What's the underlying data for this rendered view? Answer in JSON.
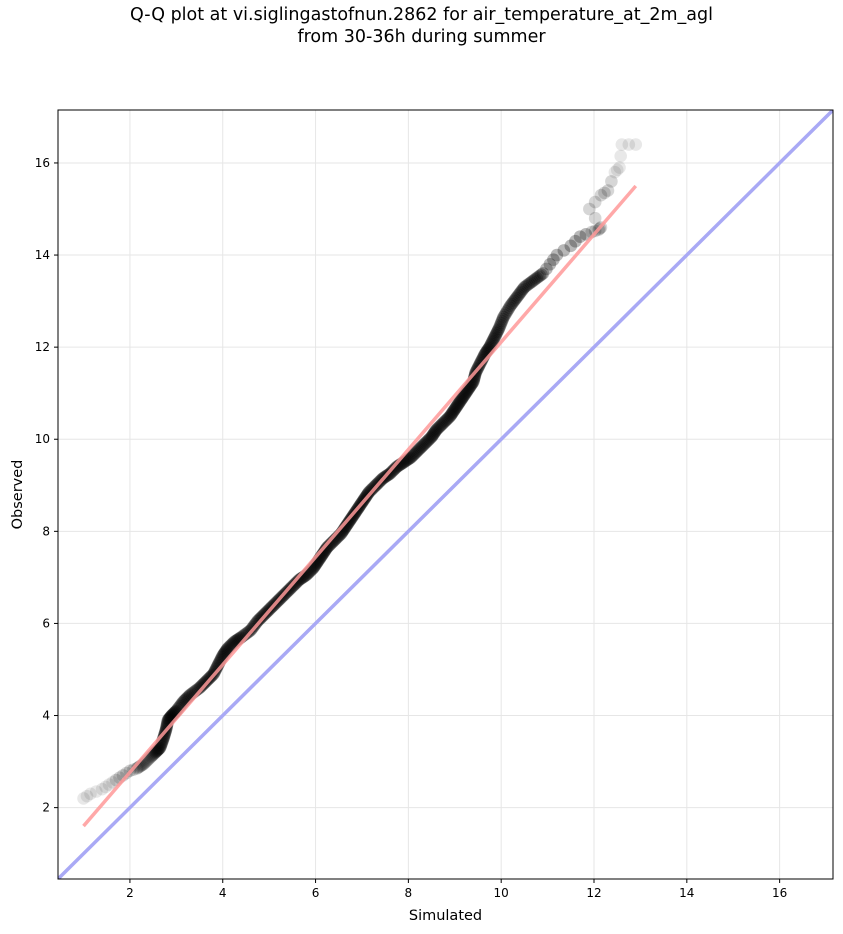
{
  "chart_data": {
    "type": "scatter",
    "title_line1": "Q-Q plot at vi.siglingastofnun.2862 for air_temperature_at_2m_agl",
    "title_line2": "from 30-36h during summer",
    "xlabel": "Simulated",
    "ylabel": "Observed",
    "xlim": [
      0.45,
      17.15
    ],
    "ylim": [
      0.45,
      17.15
    ],
    "xticks": [
      2,
      4,
      6,
      8,
      10,
      12,
      14,
      16
    ],
    "yticks": [
      2,
      4,
      6,
      8,
      10,
      12,
      14,
      16
    ],
    "grid": true,
    "legend": "none",
    "series": [
      {
        "kind": "scatter",
        "color": "#000000",
        "points": [
          [
            1.0,
            2.2
          ],
          [
            1.15,
            2.3
          ],
          [
            1.4,
            2.4
          ],
          [
            1.55,
            2.5
          ],
          [
            1.7,
            2.6
          ],
          [
            1.85,
            2.7
          ],
          [
            2.0,
            2.8
          ],
          [
            2.15,
            2.85
          ],
          [
            2.3,
            2.95
          ],
          [
            2.45,
            3.1
          ],
          [
            2.55,
            3.2
          ],
          [
            2.65,
            3.3
          ],
          [
            2.72,
            3.5
          ],
          [
            2.78,
            3.7
          ],
          [
            2.82,
            3.9
          ],
          [
            2.9,
            4.0
          ],
          [
            3.0,
            4.1
          ],
          [
            3.15,
            4.3
          ],
          [
            3.3,
            4.45
          ],
          [
            3.5,
            4.6
          ],
          [
            3.65,
            4.75
          ],
          [
            3.8,
            4.9
          ],
          [
            3.9,
            5.1
          ],
          [
            4.0,
            5.3
          ],
          [
            4.1,
            5.45
          ],
          [
            4.25,
            5.6
          ],
          [
            4.4,
            5.7
          ],
          [
            4.6,
            5.85
          ],
          [
            4.75,
            6.05
          ],
          [
            4.9,
            6.2
          ],
          [
            5.05,
            6.35
          ],
          [
            5.2,
            6.5
          ],
          [
            5.35,
            6.65
          ],
          [
            5.5,
            6.8
          ],
          [
            5.65,
            6.95
          ],
          [
            5.8,
            7.05
          ],
          [
            5.95,
            7.2
          ],
          [
            6.05,
            7.35
          ],
          [
            6.15,
            7.5
          ],
          [
            6.25,
            7.65
          ],
          [
            6.4,
            7.8
          ],
          [
            6.55,
            7.95
          ],
          [
            6.65,
            8.1
          ],
          [
            6.75,
            8.25
          ],
          [
            6.85,
            8.4
          ],
          [
            6.95,
            8.55
          ],
          [
            7.05,
            8.7
          ],
          [
            7.15,
            8.85
          ],
          [
            7.3,
            9.0
          ],
          [
            7.45,
            9.15
          ],
          [
            7.6,
            9.25
          ],
          [
            7.75,
            9.4
          ],
          [
            7.9,
            9.5
          ],
          [
            8.05,
            9.6
          ],
          [
            8.2,
            9.75
          ],
          [
            8.35,
            9.9
          ],
          [
            8.5,
            10.05
          ],
          [
            8.6,
            10.2
          ],
          [
            8.75,
            10.35
          ],
          [
            8.9,
            10.5
          ],
          [
            9.0,
            10.65
          ],
          [
            9.1,
            10.8
          ],
          [
            9.2,
            10.95
          ],
          [
            9.3,
            11.1
          ],
          [
            9.4,
            11.25
          ],
          [
            9.45,
            11.45
          ],
          [
            9.55,
            11.65
          ],
          [
            9.65,
            11.85
          ],
          [
            9.75,
            12.0
          ],
          [
            9.85,
            12.2
          ],
          [
            9.95,
            12.4
          ],
          [
            10.05,
            12.65
          ],
          [
            10.2,
            12.9
          ],
          [
            10.35,
            13.1
          ],
          [
            10.5,
            13.3
          ],
          [
            10.7,
            13.45
          ],
          [
            10.9,
            13.6
          ],
          [
            11.05,
            13.8
          ],
          [
            11.2,
            14.0
          ],
          [
            11.5,
            14.2
          ],
          [
            11.7,
            14.4
          ],
          [
            11.95,
            14.5
          ],
          [
            12.1,
            14.55
          ],
          [
            12.15,
            14.6
          ],
          [
            11.9,
            15.0
          ],
          [
            12.15,
            15.3
          ],
          [
            12.3,
            15.4
          ],
          [
            12.45,
            15.8
          ],
          [
            12.55,
            15.9
          ],
          [
            12.6,
            16.4
          ],
          [
            12.9,
            16.4
          ]
        ]
      },
      {
        "kind": "fit-line",
        "color": "#ff9999",
        "points": [
          [
            1.0,
            1.6
          ],
          [
            12.9,
            15.5
          ]
        ]
      },
      {
        "kind": "identity-line",
        "color": "#a9a9f5",
        "points": [
          [
            0.45,
            0.45
          ],
          [
            17.15,
            17.15
          ]
        ]
      }
    ]
  }
}
